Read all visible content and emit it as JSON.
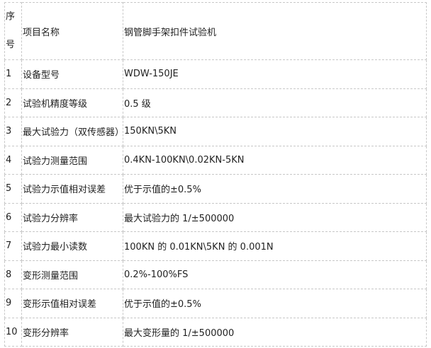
{
  "header": {
    "seq_line1": "序",
    "seq_line2": "号",
    "item": "项目名称",
    "value": "钢管脚手架扣件试验机"
  },
  "rows": [
    {
      "no": "1",
      "item": "设备型号",
      "value": "WDW-150JE"
    },
    {
      "no": "2",
      "item": "试验机精度等级",
      "value": "0.5 级"
    },
    {
      "no": "3",
      "item": "最大试验力（双传感器）",
      "value": "150KN\\5KN"
    },
    {
      "no": "4",
      "item": "试验力测量范围",
      "value": "0.4KN-100KN\\0.02KN-5KN"
    },
    {
      "no": "5",
      "item": "试验力示值相对误差",
      "value": "优于示值的±0.5%"
    },
    {
      "no": "6",
      "item": "试验力分辨率",
      "value": "最大试验力的 1/±500000"
    },
    {
      "no": "7",
      "item": "试验力最小读数",
      "value": "100KN 的 0.01KN\\5KN 的 0.001N"
    },
    {
      "no": "8",
      "item": "变形测量范围",
      "value": "0.2%-100%FS"
    },
    {
      "no": "9",
      "item": "变形示值相对误差",
      "value": "优于示值的±0.5%"
    },
    {
      "no": "10",
      "item": "变形分辨率",
      "value": "最大变形量的 1/±500000"
    }
  ]
}
